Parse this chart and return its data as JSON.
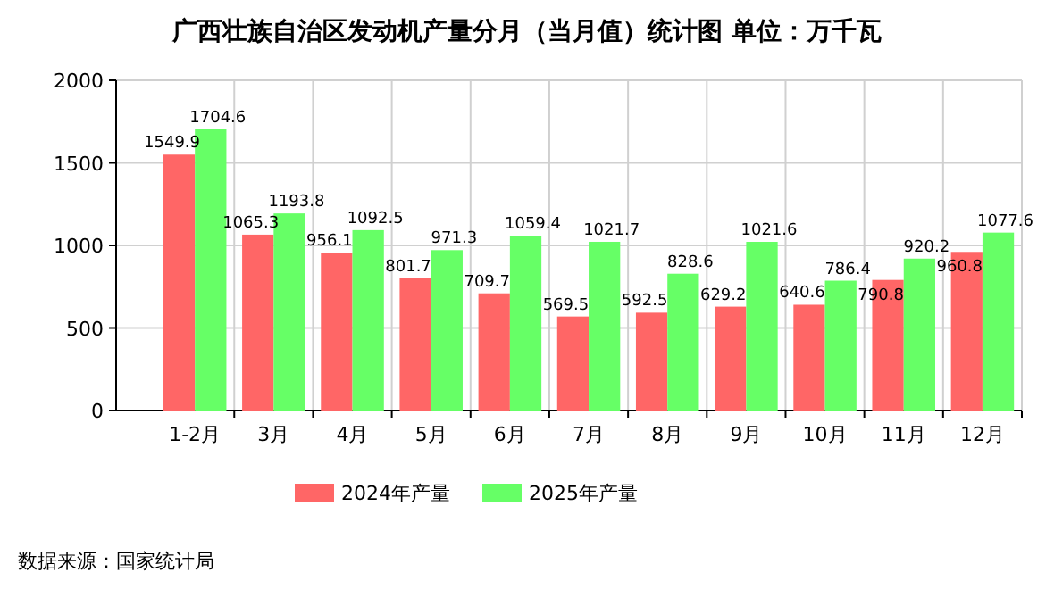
{
  "chart_data": {
    "type": "bar",
    "title": "广西壮族自治区发动机产量分月（当月值）统计图 单位：万千瓦",
    "categories": [
      "1-2月",
      "3月",
      "4月",
      "5月",
      "6月",
      "7月",
      "8月",
      "9月",
      "10月",
      "11月",
      "12月"
    ],
    "series": [
      {
        "name": "2024年产量",
        "color": "#ff6666",
        "values": [
          1549.9,
          1065.3,
          956.1,
          801.7,
          709.7,
          569.5,
          592.5,
          629.2,
          640.6,
          790.8,
          960.8
        ]
      },
      {
        "name": "2025年产量",
        "color": "#66ff66",
        "values": [
          1704.6,
          1193.8,
          1092.5,
          971.3,
          1059.4,
          1021.7,
          828.6,
          1021.6,
          786.4,
          920.2,
          1077.6
        ]
      }
    ],
    "ylim": [
      0,
      2000
    ],
    "yticks": [
      0,
      500,
      1000,
      1500,
      2000
    ],
    "grid": true,
    "legend": "bottom",
    "data_labels": true,
    "annotations": [
      "数据来源：国家统计局"
    ]
  }
}
